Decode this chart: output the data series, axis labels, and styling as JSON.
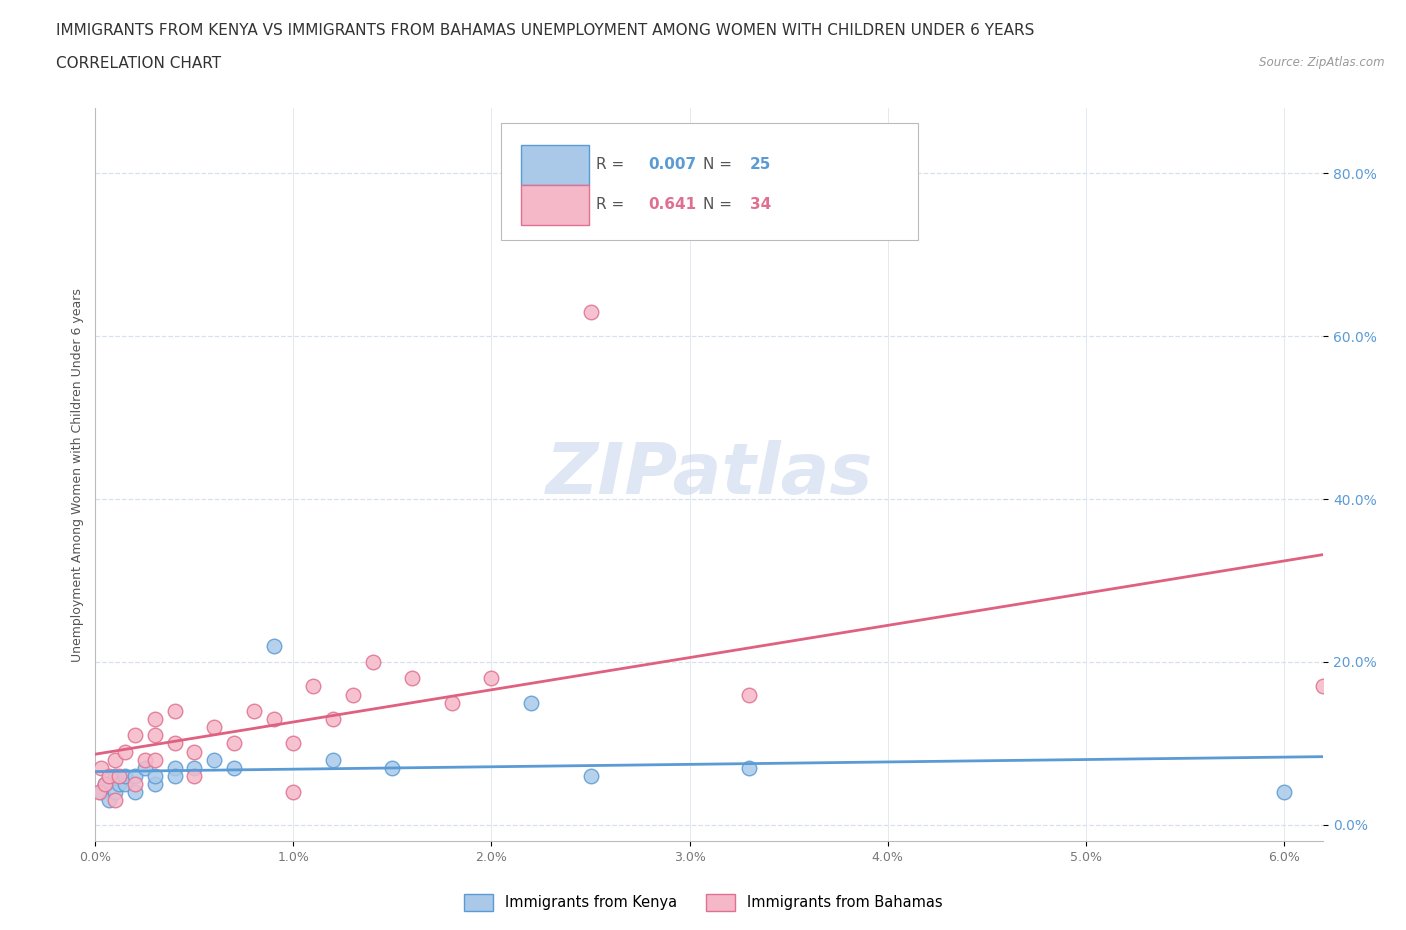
{
  "title_line1": "IMMIGRANTS FROM KENYA VS IMMIGRANTS FROM BAHAMAS UNEMPLOYMENT AMONG WOMEN WITH CHILDREN UNDER 6 YEARS",
  "title_line2": "CORRELATION CHART",
  "source_text": "Source: ZipAtlas.com",
  "ylabel": "Unemployment Among Women with Children Under 6 years",
  "xlim": [
    0.0,
    0.062
  ],
  "ylim": [
    -0.02,
    0.88
  ],
  "yticks": [
    0.0,
    0.2,
    0.4,
    0.6,
    0.8
  ],
  "ytick_labels": [
    "0.0%",
    "20.0%",
    "40.0%",
    "60.0%",
    "80.0%"
  ],
  "xticks": [
    0.0,
    0.01,
    0.02,
    0.03,
    0.04,
    0.05,
    0.06
  ],
  "xtick_labels": [
    "0.0%",
    "1.0%",
    "2.0%",
    "3.0%",
    "4.0%",
    "5.0%",
    "6.0%"
  ],
  "kenya_color": "#aac9e8",
  "kenya_edge_color": "#5b9bd5",
  "bahamas_color": "#f5b8c8",
  "bahamas_edge_color": "#e07090",
  "kenya_line_color": "#5b9bd5",
  "bahamas_line_color": "#e06080",
  "legend_R_kenya": "0.007",
  "legend_N_kenya": "25",
  "legend_R_bahamas": "0.641",
  "legend_N_bahamas": "34",
  "watermark": "ZIPatlas",
  "kenya_x": [
    0.0003,
    0.0005,
    0.0007,
    0.001,
    0.001,
    0.0012,
    0.0015,
    0.0015,
    0.002,
    0.002,
    0.0025,
    0.003,
    0.003,
    0.004,
    0.004,
    0.005,
    0.006,
    0.007,
    0.009,
    0.012,
    0.015,
    0.022,
    0.025,
    0.033,
    0.06
  ],
  "kenya_y": [
    0.04,
    0.05,
    0.03,
    0.06,
    0.04,
    0.05,
    0.05,
    0.06,
    0.04,
    0.06,
    0.07,
    0.05,
    0.06,
    0.07,
    0.06,
    0.07,
    0.08,
    0.07,
    0.22,
    0.08,
    0.07,
    0.15,
    0.06,
    0.07,
    0.04
  ],
  "bahamas_x": [
    0.0002,
    0.0003,
    0.0005,
    0.0007,
    0.001,
    0.001,
    0.0012,
    0.0015,
    0.002,
    0.002,
    0.0025,
    0.003,
    0.003,
    0.003,
    0.004,
    0.004,
    0.005,
    0.005,
    0.006,
    0.007,
    0.008,
    0.009,
    0.01,
    0.01,
    0.011,
    0.012,
    0.013,
    0.014,
    0.016,
    0.018,
    0.02,
    0.025,
    0.033,
    0.062
  ],
  "bahamas_y": [
    0.04,
    0.07,
    0.05,
    0.06,
    0.03,
    0.08,
    0.06,
    0.09,
    0.05,
    0.11,
    0.08,
    0.11,
    0.08,
    0.13,
    0.1,
    0.14,
    0.09,
    0.06,
    0.12,
    0.1,
    0.14,
    0.13,
    0.04,
    0.1,
    0.17,
    0.13,
    0.16,
    0.2,
    0.18,
    0.15,
    0.18,
    0.63,
    0.16,
    0.17
  ],
  "background_color": "#ffffff",
  "grid_color": "#d8e0ec",
  "title_fontsize": 11,
  "axis_label_fontsize": 9,
  "tick_fontsize": 9,
  "legend_fontsize": 11,
  "watermark_color": "#ccd8ee",
  "watermark_alpha": 0.6
}
